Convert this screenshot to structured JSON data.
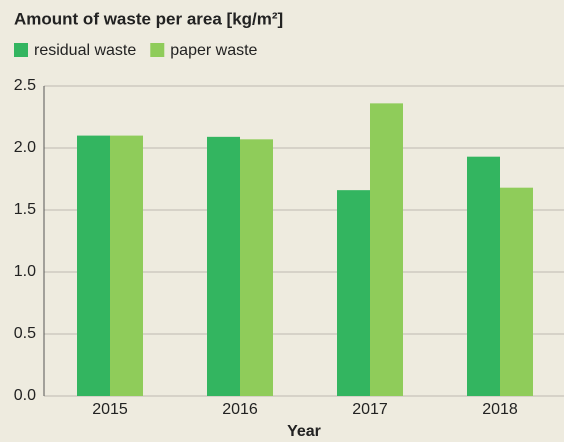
{
  "chart_data": {
    "type": "bar",
    "title": "Amount of waste per area [kg/m²]",
    "x_label": "Year",
    "categories": [
      "2015",
      "2016",
      "2017",
      "2018"
    ],
    "series": [
      {
        "name": "residual waste",
        "color": "#33b560",
        "values": [
          2.1,
          2.09,
          1.66,
          1.93
        ]
      },
      {
        "name": "paper waste",
        "color": "#8fcc5a",
        "values": [
          2.1,
          2.07,
          2.36,
          1.68
        ]
      }
    ],
    "ylim": [
      0,
      2.5
    ],
    "yticks": [
      {
        "value": 0,
        "label": "0.0"
      },
      0.5,
      {
        "value": 1,
        "label": "1.0"
      },
      1.5,
      {
        "value": 2,
        "label": "2.0"
      },
      2.5
    ],
    "grid": true,
    "legend": "top-left"
  }
}
